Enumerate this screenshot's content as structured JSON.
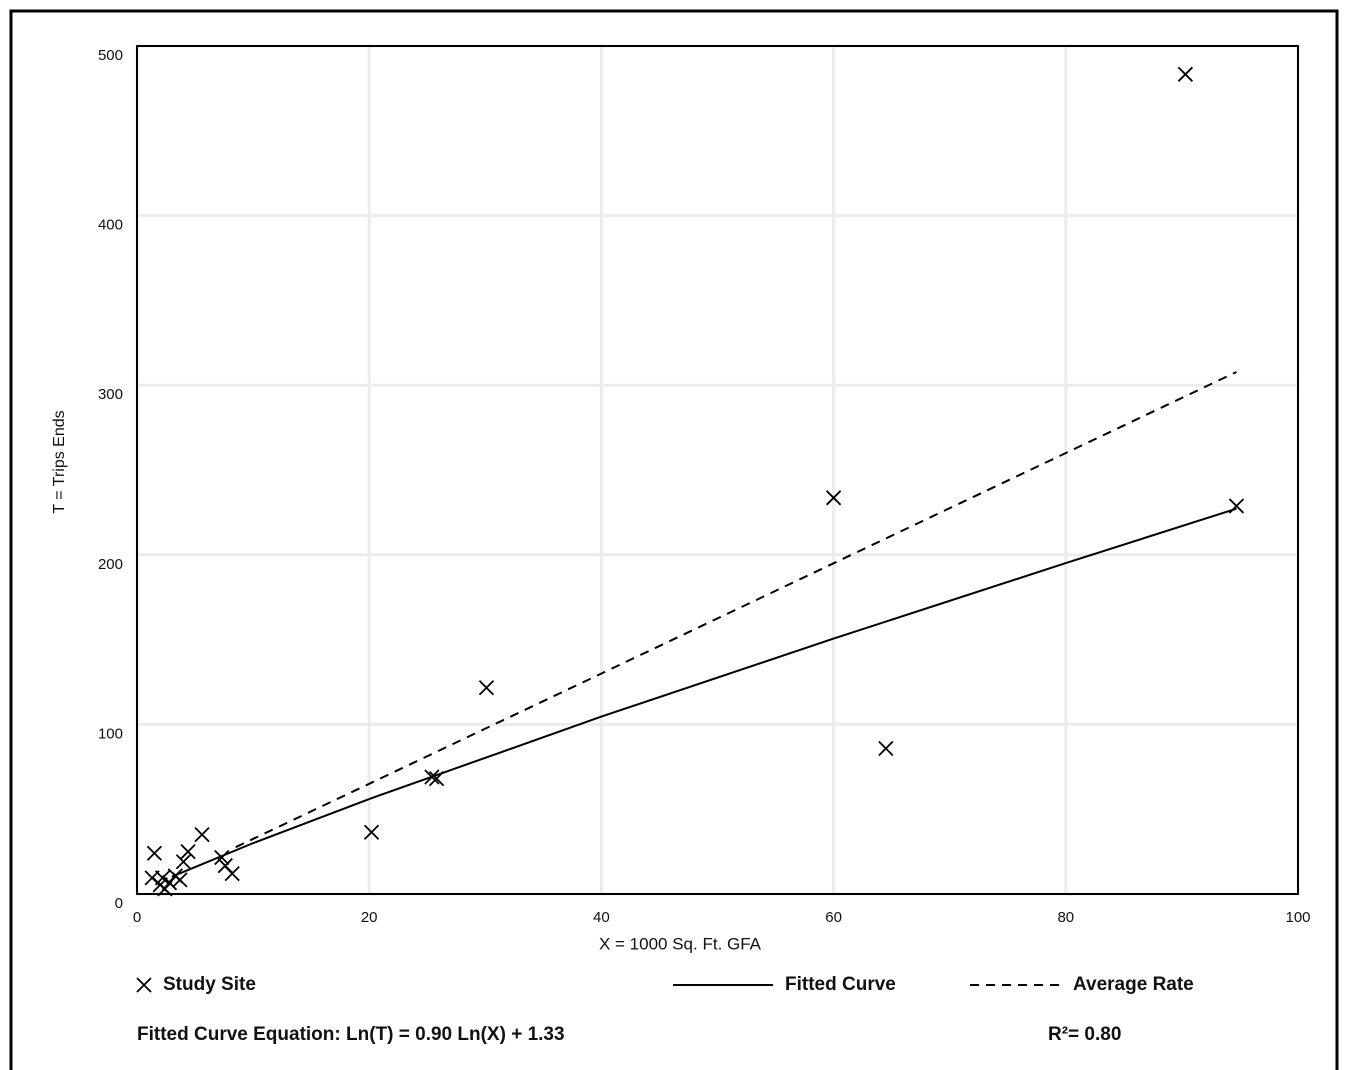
{
  "chart_data": {
    "type": "scatter",
    "x_label": "X = 1000 Sq. Ft. GFA",
    "y_label": "T = Trips Ends",
    "xlim": [
      0,
      100
    ],
    "xticks": [
      0,
      20,
      40,
      60,
      80,
      100
    ],
    "ylim": [
      0,
      500
    ],
    "yticks": [
      0,
      100,
      200,
      300,
      400,
      500
    ],
    "grid": true,
    "series": [
      {
        "name": "Study Site",
        "kind": "markers",
        "color": "#000000",
        "x": [
          1.5,
          1.3,
          2.0,
          2.4,
          2.2,
          2.8,
          3.3,
          3.7,
          4.0,
          4.4,
          5.6,
          7.3,
          7.6,
          8.2,
          20.2,
          25.4,
          25.8,
          30.1,
          60.0,
          64.5,
          90.3,
          94.7
        ],
        "values": [
          24,
          9.5,
          5.4,
          3,
          9.5,
          6.6,
          10.7,
          8.3,
          19,
          25,
          35,
          21.5,
          16.7,
          12,
          36.4,
          69,
          68,
          121.6,
          233.6,
          85.8,
          483.3,
          228.8
        ]
      },
      {
        "name": "Fitted Curve",
        "kind": "solid",
        "color": "#000000",
        "x": [
          3,
          10,
          20,
          40,
          60,
          80,
          94.7
        ],
        "values": [
          10.2,
          30.0,
          56.0,
          104.6,
          150.6,
          195.1,
          227.2
        ]
      },
      {
        "name": "Average Rate",
        "kind": "dashed",
        "color": "#000000",
        "x": [
          8.5,
          94.7
        ],
        "values": [
          27.6,
          307.8
        ]
      }
    ],
    "equation": "Fitted Curve Equation: Ln(T) = 0.90 Ln(X) + 1.33",
    "r_squared": "R²= 0.80"
  }
}
